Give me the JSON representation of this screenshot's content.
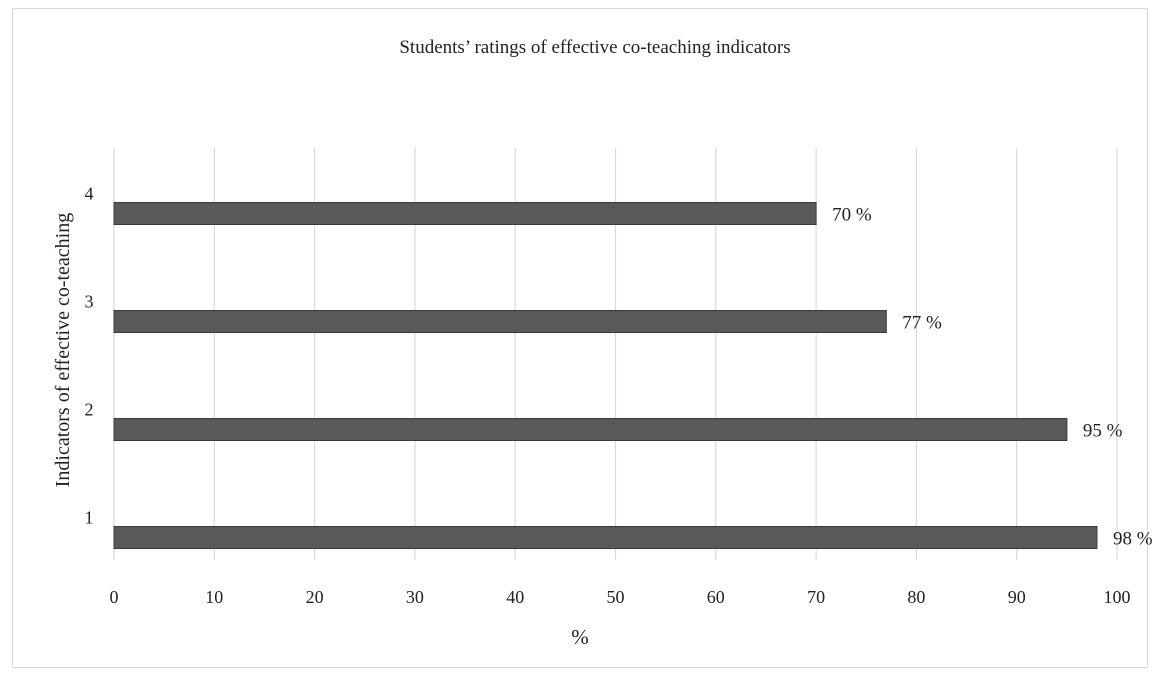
{
  "chart_data": {
    "type": "bar",
    "orientation": "horizontal",
    "title": "Students’ ratings of effective co-teaching indicators",
    "xlabel": "%",
    "ylabel": "Indicators of effective co-teaching",
    "categories": [
      "1",
      "2",
      "3",
      "4"
    ],
    "values": [
      98,
      95,
      77,
      70
    ],
    "data_labels": [
      "98 %",
      "95 %",
      "77 %",
      "70 %"
    ],
    "xlim": [
      0,
      100
    ],
    "x_ticks": [
      "0",
      "10",
      "20",
      "30",
      "40",
      "50",
      "60",
      "70",
      "80",
      "90",
      "100"
    ],
    "grid": true,
    "legend": "none",
    "bar_color": "#595959",
    "grid_color": "#d9d9d9"
  }
}
